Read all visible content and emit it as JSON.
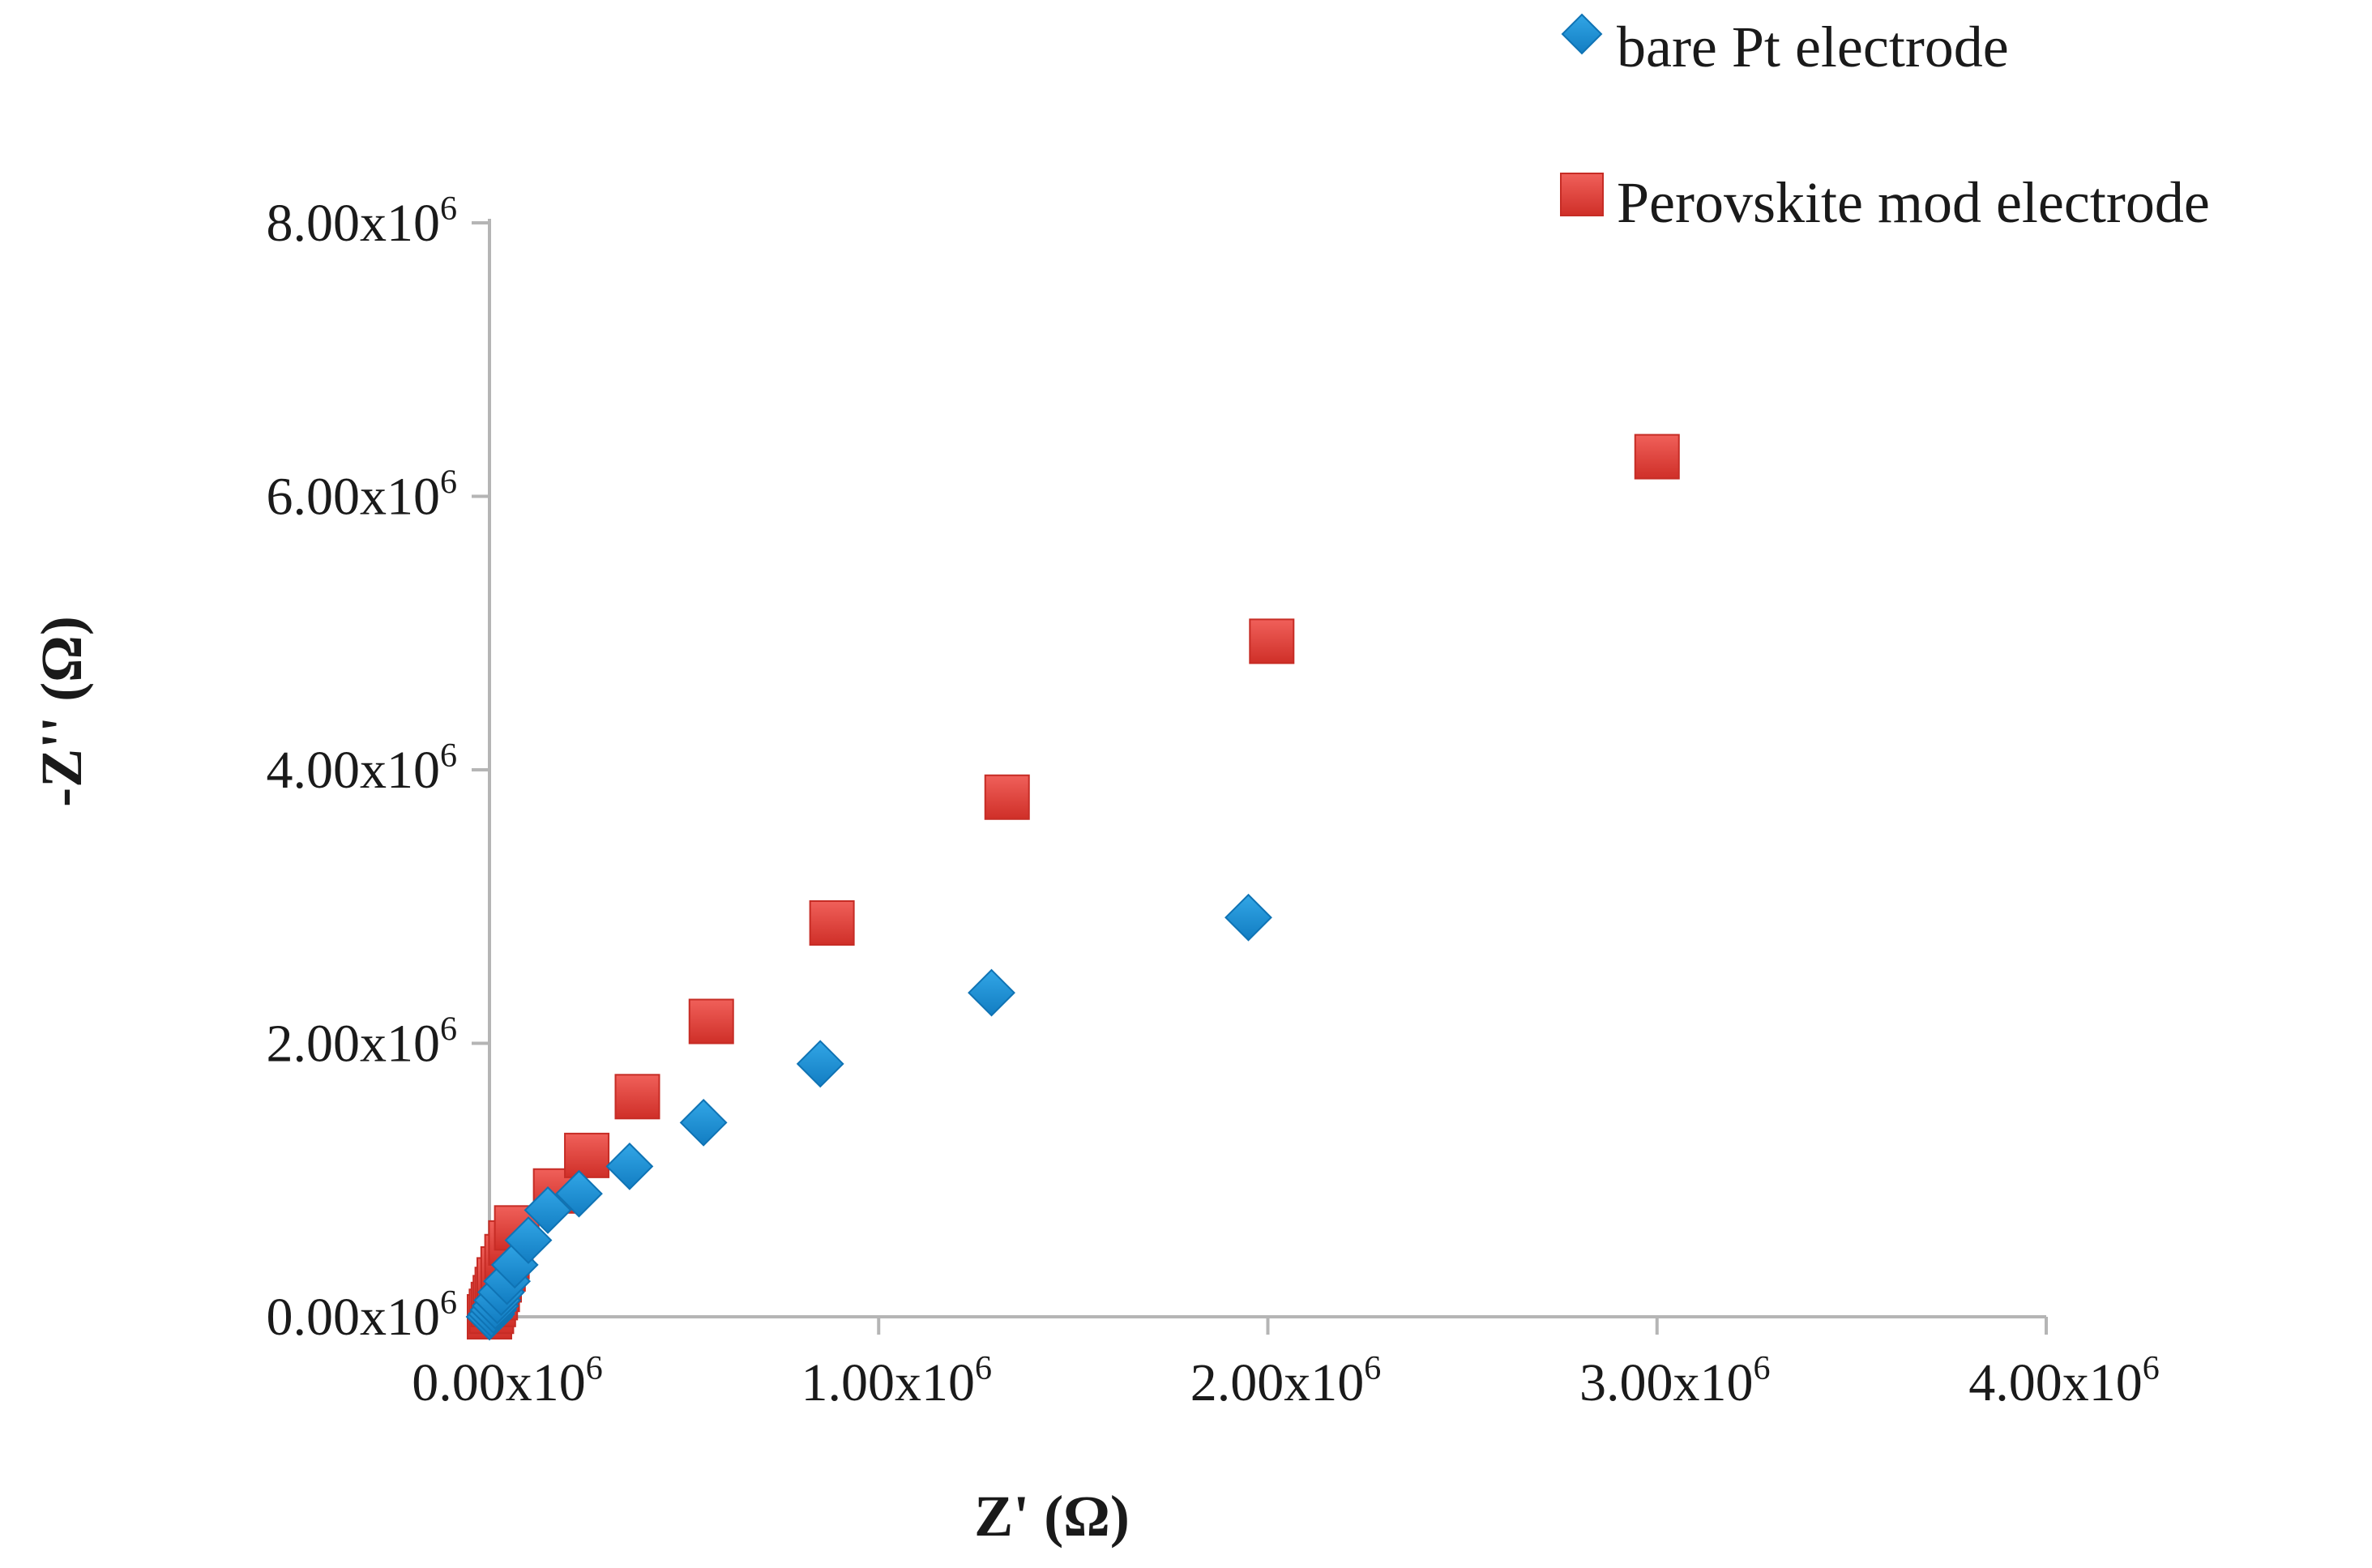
{
  "chart_data": {
    "type": "scatter",
    "title": "",
    "xlabel": "Z' (Ω)",
    "ylabel": "-Z'' (Ω)",
    "xlim": [
      0,
      4000000
    ],
    "ylim": [
      0,
      8000000
    ],
    "x_ticks": [
      {
        "value": 0,
        "mantissa": "0.00",
        "exp": "6"
      },
      {
        "value": 1000000,
        "mantissa": "1.00",
        "exp": "6"
      },
      {
        "value": 2000000,
        "mantissa": "2.00",
        "exp": "6"
      },
      {
        "value": 3000000,
        "mantissa": "3.00",
        "exp": "6"
      },
      {
        "value": 4000000,
        "mantissa": "4.00",
        "exp": "6"
      }
    ],
    "y_ticks": [
      {
        "value": 0,
        "mantissa": "0.00",
        "exp": "6"
      },
      {
        "value": 2000000,
        "mantissa": "2.00",
        "exp": "6"
      },
      {
        "value": 4000000,
        "mantissa": "4.00",
        "exp": "6"
      },
      {
        "value": 6000000,
        "mantissa": "6.00",
        "exp": "6"
      },
      {
        "value": 8000000,
        "mantissa": "8.00",
        "exp": "6"
      }
    ],
    "tick_base": "x10",
    "grid": false,
    "legend": "top-right",
    "series": [
      {
        "name": "bare Pt electrode",
        "marker": "diamond",
        "color": "#1a8fd6",
        "points": [
          {
            "x": 0,
            "y": 0
          },
          {
            "x": 5000,
            "y": 20000
          },
          {
            "x": 10000,
            "y": 50000
          },
          {
            "x": 15000,
            "y": 80000
          },
          {
            "x": 20000,
            "y": 120000
          },
          {
            "x": 30000,
            "y": 180000
          },
          {
            "x": 45000,
            "y": 260000
          },
          {
            "x": 65000,
            "y": 380000
          },
          {
            "x": 100000,
            "y": 560000
          },
          {
            "x": 150000,
            "y": 780000
          },
          {
            "x": 230000,
            "y": 900000
          },
          {
            "x": 360000,
            "y": 1100000
          },
          {
            "x": 550000,
            "y": 1420000
          },
          {
            "x": 850000,
            "y": 1850000
          },
          {
            "x": 1290000,
            "y": 2370000
          },
          {
            "x": 1950000,
            "y": 2920000
          }
        ]
      },
      {
        "name": "Perovskite mod electrode",
        "marker": "square",
        "color": "#e8423a",
        "points": [
          {
            "x": 0,
            "y": 0
          },
          {
            "x": 5000,
            "y": 40000
          },
          {
            "x": 10000,
            "y": 90000
          },
          {
            "x": 15000,
            "y": 140000
          },
          {
            "x": 20000,
            "y": 200000
          },
          {
            "x": 25000,
            "y": 270000
          },
          {
            "x": 35000,
            "y": 350000
          },
          {
            "x": 45000,
            "y": 440000
          },
          {
            "x": 55000,
            "y": 540000
          },
          {
            "x": 70000,
            "y": 650000
          },
          {
            "x": 170000,
            "y": 920000
          },
          {
            "x": 250000,
            "y": 1180000
          },
          {
            "x": 380000,
            "y": 1610000
          },
          {
            "x": 570000,
            "y": 2160000
          },
          {
            "x": 880000,
            "y": 2880000
          },
          {
            "x": 1330000,
            "y": 3800000
          },
          {
            "x": 2010000,
            "y": 4940000
          },
          {
            "x": 3000000,
            "y": 6290000
          }
        ]
      }
    ]
  }
}
